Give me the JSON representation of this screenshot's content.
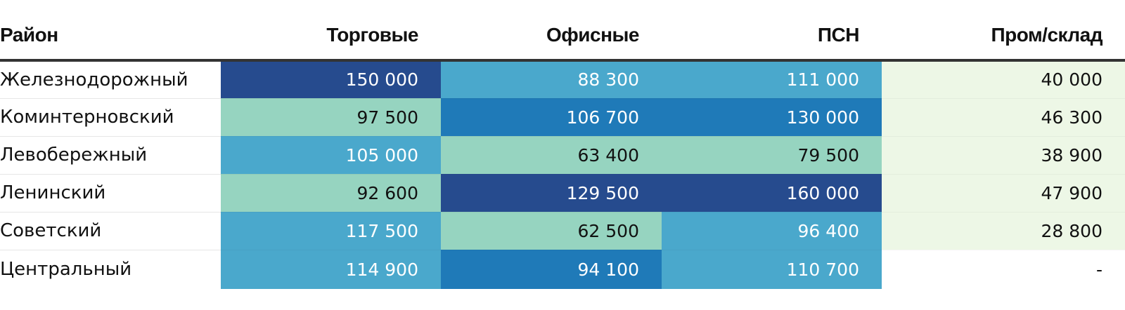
{
  "table": {
    "columns": [
      "Район",
      "Торговые",
      "Офисные",
      "ПСН",
      "Пром/склад"
    ],
    "rows": [
      {
        "district": "Железнодорожный",
        "values": [
          "150 000",
          "88 300",
          "111 000",
          "40 000"
        ],
        "numeric": [
          150000,
          88300,
          111000,
          40000
        ]
      },
      {
        "district": "Коминтерновский",
        "values": [
          "97 500",
          "106 700",
          "130 000",
          "46 300"
        ],
        "numeric": [
          97500,
          106700,
          130000,
          46300
        ]
      },
      {
        "district": "Левобережный",
        "values": [
          "105 000",
          "63 400",
          "79 500",
          "38 900"
        ],
        "numeric": [
          105000,
          63400,
          79500,
          38900
        ]
      },
      {
        "district": "Ленинский",
        "values": [
          "92 600",
          "129 500",
          "160 000",
          "47 900"
        ],
        "numeric": [
          92600,
          129500,
          160000,
          47900
        ]
      },
      {
        "district": "Советский",
        "values": [
          "117 500",
          "62 500",
          "96 400",
          "28 800"
        ],
        "numeric": [
          117500,
          62500,
          96400,
          28800
        ]
      },
      {
        "district": "Центральный",
        "values": [
          "114 900",
          "94 100",
          "110 700",
          "-"
        ],
        "numeric": [
          114900,
          94100,
          110700,
          null
        ]
      }
    ]
  },
  "colors": {
    "darkest": "#264b8e",
    "dark": "#1f7ab8",
    "mid": "#4aa8cc",
    "light": "#96d4c0",
    "lightest": "#edf7e6",
    "empty": "#ffffff",
    "text_dark_bg": "#ffffff",
    "text_light_bg": "#111111"
  },
  "chart_data": {
    "type": "heatmap",
    "categories": [
      "Железнодорожный",
      "Коминтерновский",
      "Левобережный",
      "Ленинский",
      "Советский",
      "Центральный"
    ],
    "series": [
      {
        "name": "Торговые",
        "values": [
          150000,
          97500,
          105000,
          92600,
          117500,
          114900
        ]
      },
      {
        "name": "Офисные",
        "values": [
          88300,
          106700,
          63400,
          129500,
          62500,
          94100
        ]
      },
      {
        "name": "ПСН",
        "values": [
          111000,
          130000,
          79500,
          160000,
          96400,
          110700
        ]
      },
      {
        "name": "Пром/склад",
        "values": [
          40000,
          46300,
          38900,
          47900,
          28800,
          null
        ]
      }
    ]
  }
}
